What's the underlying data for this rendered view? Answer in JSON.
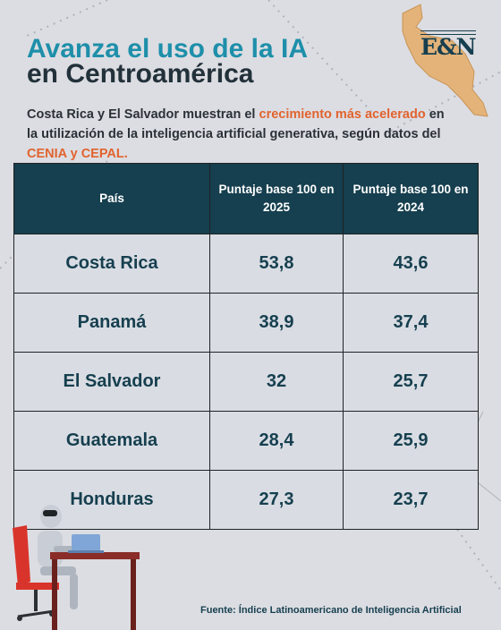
{
  "header": {
    "title_line1": "Avanza el uso de la IA",
    "title_line2": "en Centroamérica",
    "logo": "E&N",
    "subtitle_part1": "Costa Rica y El Salvador muestran el ",
    "subtitle_highlight1": "crecimiento más acelerado",
    "subtitle_part2": " en la utilización de la inteligencia artificial generativa, según datos del ",
    "subtitle_highlight2": "CENIA y CEPAL."
  },
  "colors": {
    "title_accent": "#1e8faa",
    "highlight": "#e2632e",
    "table_header": "#163f4f",
    "background": "#dcdde2"
  },
  "chart_data": {
    "type": "table",
    "columns": [
      "País",
      "Puntaje base 100 en 2025",
      "Puntaje base 100 en 2024"
    ],
    "rows": [
      {
        "country": "Costa Rica",
        "score_2025": "53,8",
        "score_2024": "43,6"
      },
      {
        "country": "Panamá",
        "score_2025": "38,9",
        "score_2024": "37,4"
      },
      {
        "country": "El Salvador",
        "score_2025": "32",
        "score_2024": "25,7"
      },
      {
        "country": "Guatemala",
        "score_2025": "28,4",
        "score_2024": "25,9"
      },
      {
        "country": "Honduras",
        "score_2025": "27,3",
        "score_2024": "23,7"
      }
    ]
  },
  "footer": {
    "source": "Fuente: Índice Latinoamericano de Inteligencia Artificial"
  }
}
